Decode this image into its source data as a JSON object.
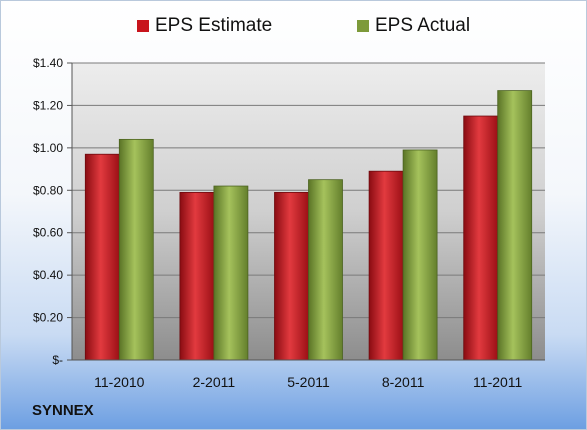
{
  "legend": {
    "estimate": "EPS Estimate",
    "actual": "EPS Actual"
  },
  "company": "SYNNEX",
  "colors": {
    "estimate": "#c8141c",
    "actual": "#7d9a3a"
  },
  "chart_data": {
    "type": "bar",
    "categories": [
      "11-2010",
      "2-2011",
      "5-2011",
      "8-2011",
      "11-2011"
    ],
    "series": [
      {
        "name": "EPS Estimate",
        "values": [
          0.97,
          0.79,
          0.79,
          0.89,
          1.15
        ]
      },
      {
        "name": "EPS Actual",
        "values": [
          1.04,
          0.82,
          0.85,
          0.99,
          1.27
        ]
      }
    ],
    "yticks": [
      "$-",
      "$0.20",
      "$0.40",
      "$0.60",
      "$0.80",
      "$1.00",
      "$1.20",
      "$1.40"
    ],
    "ylim": [
      0,
      1.4
    ],
    "grid": true,
    "legend_position": "top"
  }
}
